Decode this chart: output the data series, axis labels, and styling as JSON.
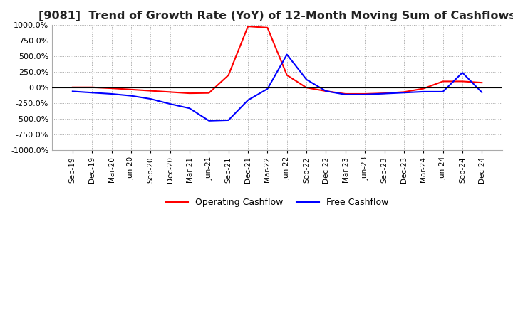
{
  "title": "[9081]  Trend of Growth Rate (YoY) of 12-Month Moving Sum of Cashflows",
  "title_fontsize": 11.5,
  "ylim": [
    -1000,
    1000
  ],
  "yticks": [
    -1000,
    -750,
    -500,
    -250,
    0,
    250,
    500,
    750,
    1000
  ],
  "background_color": "#ffffff",
  "grid_color": "#aaaaaa",
  "operating_color": "#ff0000",
  "free_color": "#0000ff",
  "legend_labels": [
    "Operating Cashflow",
    "Free Cashflow"
  ],
  "x_labels": [
    "Sep-19",
    "Dec-19",
    "Mar-20",
    "Jun-20",
    "Sep-20",
    "Dec-20",
    "Mar-21",
    "Jun-21",
    "Sep-21",
    "Dec-21",
    "Mar-22",
    "Jun-22",
    "Sep-22",
    "Dec-22",
    "Mar-23",
    "Jun-23",
    "Sep-23",
    "Dec-23",
    "Mar-24",
    "Jun-24",
    "Sep-24",
    "Dec-24"
  ],
  "operating_cashflow": [
    5,
    5,
    -10,
    -30,
    -50,
    -70,
    -90,
    -85,
    200,
    980,
    960,
    200,
    0,
    -55,
    -100,
    -100,
    -90,
    -70,
    -15,
    100,
    100,
    80
  ],
  "free_cashflow": [
    -60,
    -80,
    -100,
    -130,
    -180,
    -260,
    -330,
    -530,
    -520,
    -200,
    -20,
    530,
    130,
    -55,
    -110,
    -110,
    -95,
    -80,
    -65,
    -65,
    240,
    -75
  ]
}
